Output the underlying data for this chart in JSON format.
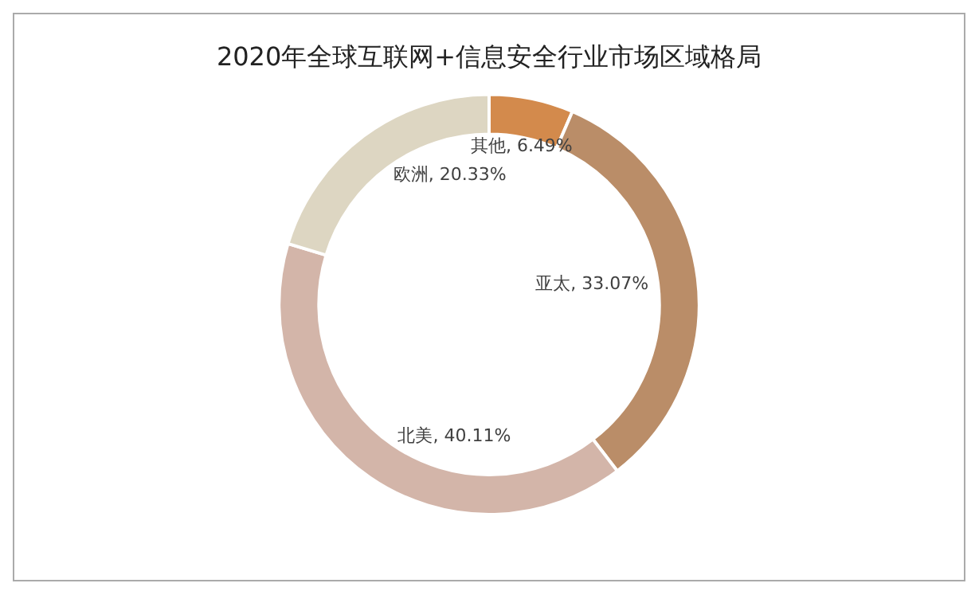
{
  "chart_data": {
    "type": "donut",
    "title": "2020年全球互联网+信息安全行业市场区域格局",
    "categories": [
      "其他",
      "亚太",
      "北美",
      "欧洲"
    ],
    "values": [
      6.49,
      33.07,
      40.11,
      20.33
    ],
    "colors": [
      "#d38a4c",
      "#ba8d68",
      "#d3b5a9",
      "#ddd6c2"
    ],
    "value_labels": [
      ", 6.49%",
      ", 33.07%",
      ", 40.11%",
      ", 20.33%"
    ],
    "legend": false
  }
}
